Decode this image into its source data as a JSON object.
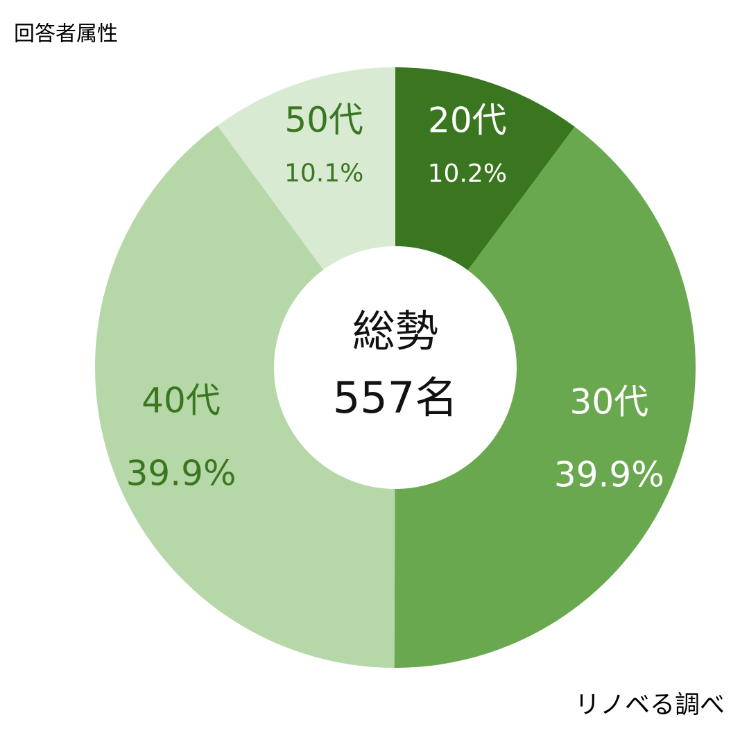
{
  "chart_data": {
    "type": "pie",
    "donut": true,
    "title": "回答者属性",
    "source": "リノベる調べ",
    "center_text": [
      "総勢",
      "557名"
    ],
    "categories": [
      "20代",
      "30代",
      "40代",
      "50代"
    ],
    "values": [
      10.2,
      39.9,
      39.9,
      10.1
    ],
    "value_labels": [
      "10.2%",
      "39.9%",
      "39.9%",
      "10.1%"
    ],
    "colors": [
      "#3a761f",
      "#6aa84f",
      "#b6d7a8",
      "#d9ead3"
    ],
    "label_colors": [
      "#ffffff",
      "#ffffff",
      "#3a761f",
      "#3a761f"
    ]
  }
}
